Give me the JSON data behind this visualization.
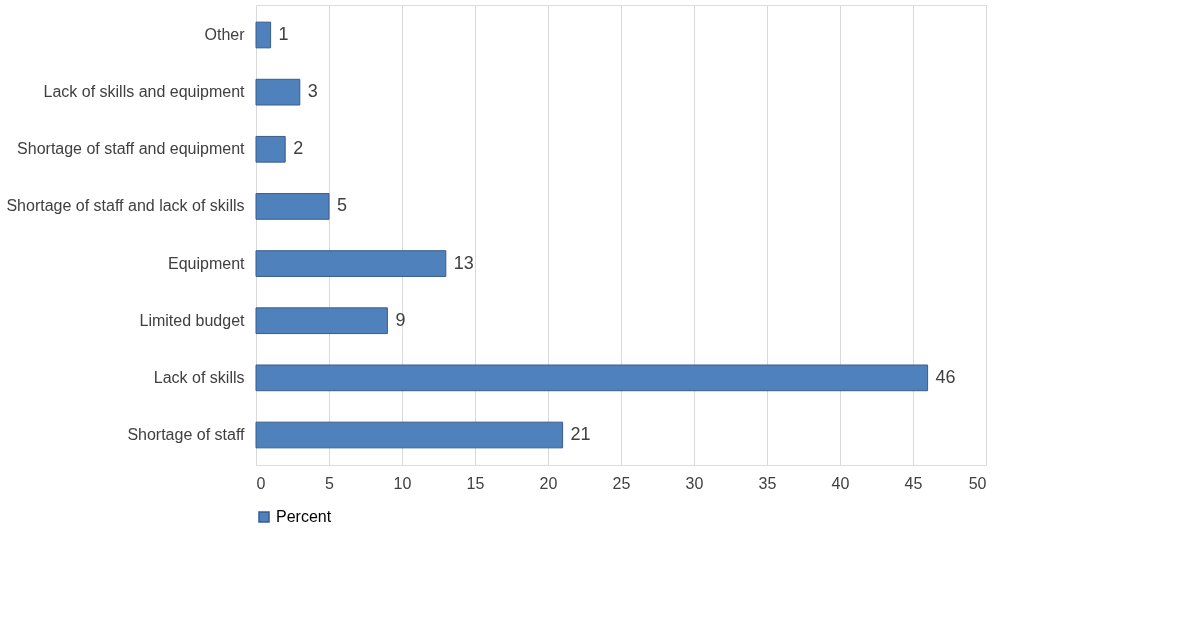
{
  "chart_data": {
    "type": "bar",
    "orientation": "horizontal",
    "categories": [
      "Other",
      "Lack of skills and equipment",
      "Shortage of staff and equipment",
      "Shortage of staff and lack of skills",
      "Equipment",
      "Limited budget",
      "Lack of skills",
      "Shortage of staff"
    ],
    "series": [
      {
        "name": "Percent",
        "color": "#4f81bd",
        "values": [
          1,
          3,
          2,
          5,
          13,
          9,
          46,
          21
        ]
      }
    ],
    "xlim": [
      0,
      50
    ],
    "xticks": [
      0,
      5,
      10,
      15,
      20,
      25,
      30,
      35,
      40,
      45,
      50
    ],
    "grid": "x",
    "legend": "bottom",
    "data_labels": true
  }
}
